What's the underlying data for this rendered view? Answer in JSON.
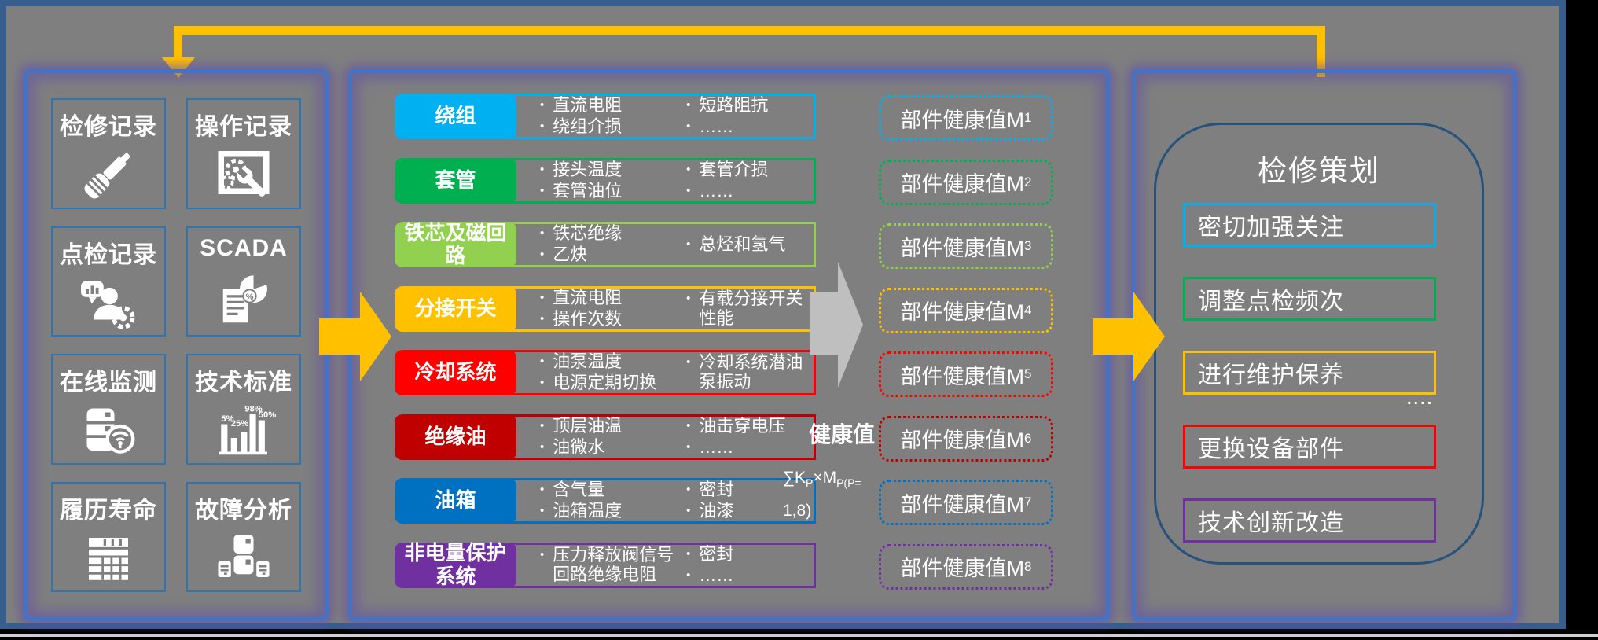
{
  "colors": {
    "canvas": "#7F7F7F",
    "frame": "#375E8C",
    "panel_border": "#4472C4",
    "panel_glow": "#604AAD",
    "tile_border": "#2E75B6",
    "accent_arrow": "#FFC000",
    "gray_arrow": "#BFBFBF",
    "rounded_border": "#26527C"
  },
  "left_panel": {
    "tiles": [
      {
        "label": "检修记录",
        "icon": "screwdriver-icon"
      },
      {
        "label": "操作记录",
        "icon": "maintenance-window-icon"
      },
      {
        "label": "点检记录",
        "icon": "inspector-person-icon"
      },
      {
        "label": "SCADA",
        "icon": "scada-report-icon",
        "icon_labels": [
          "%"
        ]
      },
      {
        "label": "在线监测",
        "icon": "online-monitoring-icon"
      },
      {
        "label": "技术标准",
        "icon": "standards-chart-icon",
        "icon_labels": [
          "5%",
          "25%",
          "98%",
          "50%"
        ]
      },
      {
        "label": "履历寿命",
        "icon": "lifecycle-table-icon"
      },
      {
        "label": "故障分析",
        "icon": "fault-analysis-icon"
      }
    ]
  },
  "middle_panel": {
    "rows": [
      {
        "label": "绕组",
        "color": "#00B0F0",
        "col1": [
          "直流电阻",
          "绕组介损"
        ],
        "col2": [
          "短路阻抗",
          "……"
        ]
      },
      {
        "label": "套管",
        "color": "#00B050",
        "col1": [
          "接头温度",
          "套管油位"
        ],
        "col2": [
          "套管介损",
          "……"
        ]
      },
      {
        "label": "铁芯及磁回路",
        "color": "#92D050",
        "col1": [
          "铁芯绝缘",
          "乙炔"
        ],
        "col2": [
          "总烃和氢气"
        ]
      },
      {
        "label": "分接开关",
        "color": "#FFC000",
        "col1": [
          "直流电阻",
          "操作次数"
        ],
        "col2": [
          "有载分接开关性能"
        ]
      },
      {
        "label": "冷却系统",
        "color": "#FF0000",
        "col1": [
          "油泵温度",
          "电源定期切换"
        ],
        "col2": [
          "冷却系统潜油泵振动"
        ]
      },
      {
        "label": "绝缘油",
        "color": "#C00000",
        "col1": [
          "顶层油温",
          "油微水"
        ],
        "col2": [
          "油击穿电压",
          "……"
        ]
      },
      {
        "label": "油箱",
        "color": "#0070C0",
        "col1": [
          "含气量",
          "油箱温度"
        ],
        "col2": [
          "密封",
          "油漆"
        ]
      },
      {
        "label": "非电量保护系统",
        "color": "#7030A0",
        "col1": [
          "压力释放阀信号\n回路绝缘电阻"
        ],
        "col2": [
          "密封",
          "……"
        ]
      }
    ]
  },
  "health": {
    "label": "健康值",
    "f_p1": "∑K",
    "f_s1": "P",
    "f_p2": "×M",
    "f_s2": "P(P=",
    "f_line2": "1,8)"
  },
  "m_boxes": [
    {
      "prefix": "部件健康值M",
      "sub": "1",
      "color": "#00B0F0"
    },
    {
      "prefix": "部件健康值M",
      "sub": "2",
      "color": "#00B050"
    },
    {
      "prefix": "部件健康值M",
      "sub": "3",
      "color": "#92D050"
    },
    {
      "prefix": "部件健康值M",
      "sub": "4",
      "color": "#FFC000"
    },
    {
      "prefix": "部件健康值M",
      "sub": "5",
      "color": "#FF0000"
    },
    {
      "prefix": "部件健康值M",
      "sub": "6",
      "color": "#C00000"
    },
    {
      "prefix": "部件健康值M",
      "sub": "7",
      "color": "#0070C0"
    },
    {
      "prefix": "部件健康值M",
      "sub": "8",
      "color": "#7030A0"
    }
  ],
  "right_panel": {
    "title": "检修策划",
    "items": [
      {
        "label": "密切加强关注",
        "color": "#00B0F0"
      },
      {
        "label": "调整点检频次",
        "color": "#00B050"
      },
      {
        "label": "进行维护保养",
        "color": "#FFC000"
      },
      {
        "label": "更换设备部件",
        "color": "#FF0000"
      },
      {
        "label": "技术创新改造",
        "color": "#7030A0"
      }
    ],
    "more": "...."
  }
}
